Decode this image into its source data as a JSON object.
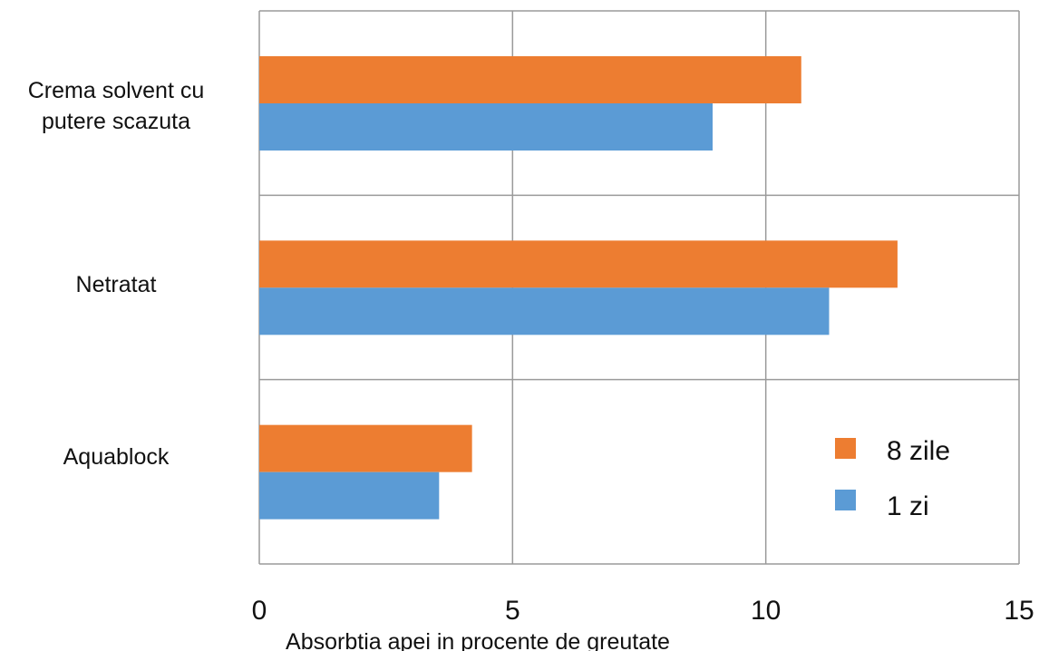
{
  "chart_data": {
    "type": "bar",
    "orientation": "horizontal",
    "categories": [
      "Crema solvent cu putere scazuta",
      "Netratat",
      "Aquablock"
    ],
    "category_label_lines": [
      [
        "Crema solvent cu",
        "putere scazuta"
      ],
      [
        "Netratat"
      ],
      [
        "Aquablock"
      ]
    ],
    "series": [
      {
        "name": "8 zile",
        "values": [
          10.7,
          12.6,
          4.2
        ],
        "color": "#ed7d31"
      },
      {
        "name": "1 zi",
        "values": [
          8.95,
          11.25,
          3.55
        ],
        "color": "#5b9bd5"
      }
    ],
    "xlim": [
      0,
      15
    ],
    "xticks": [
      0,
      5,
      10,
      15
    ],
    "xlabel": "Absorbtia apei in procente de greutate",
    "ylabel": "",
    "title": "",
    "grid": true,
    "legend_position": "bottom-right inside plot"
  }
}
